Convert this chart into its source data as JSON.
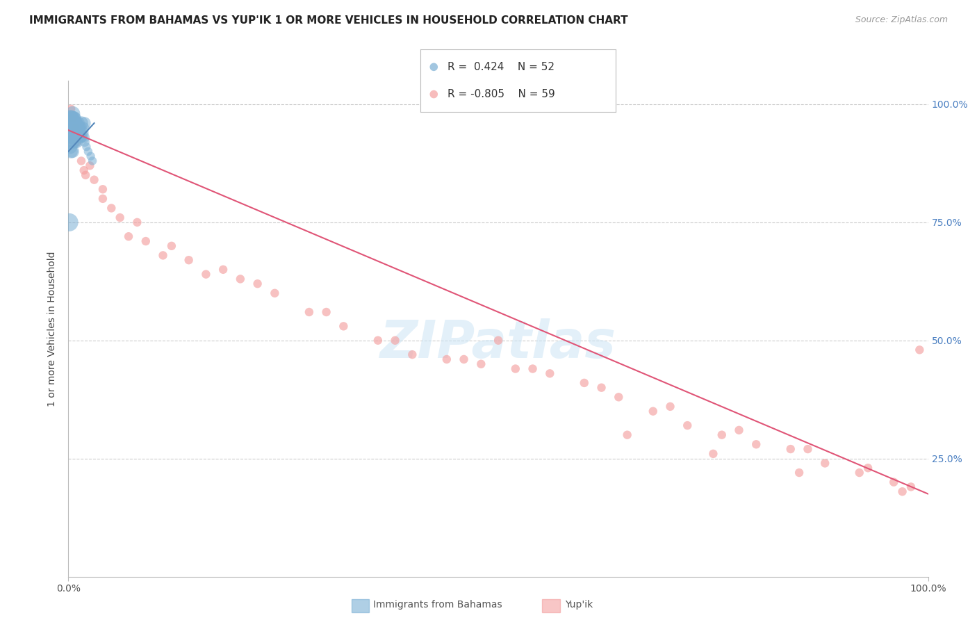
{
  "title": "IMMIGRANTS FROM BAHAMAS VS YUP'IK 1 OR MORE VEHICLES IN HOUSEHOLD CORRELATION CHART",
  "source": "Source: ZipAtlas.com",
  "ylabel": "1 or more Vehicles in Household",
  "background_color": "#ffffff",
  "watermark": "ZIPatlas",
  "blue_color": "#7bafd4",
  "pink_color": "#f4a0a0",
  "blue_line_color": "#5588bb",
  "pink_line_color": "#e05577",
  "grid_color": "#cccccc",
  "ytick_values": [
    0.0,
    0.25,
    0.5,
    0.75,
    1.0
  ],
  "xlim": [
    0.0,
    1.0
  ],
  "ylim": [
    0.0,
    1.05
  ],
  "bahamas_x": [
    0.001,
    0.002,
    0.002,
    0.003,
    0.003,
    0.003,
    0.004,
    0.004,
    0.005,
    0.005,
    0.005,
    0.006,
    0.006,
    0.007,
    0.007,
    0.008,
    0.008,
    0.009,
    0.009,
    0.01,
    0.01,
    0.011,
    0.012,
    0.013,
    0.014,
    0.015,
    0.016,
    0.017,
    0.018,
    0.019,
    0.002,
    0.003,
    0.004,
    0.005,
    0.006,
    0.007,
    0.008,
    0.009,
    0.01,
    0.011,
    0.012,
    0.013,
    0.014,
    0.015,
    0.016,
    0.017,
    0.019,
    0.021,
    0.023,
    0.026,
    0.001,
    0.028
  ],
  "bahamas_y": [
    0.95,
    0.93,
    0.91,
    0.96,
    0.94,
    0.9,
    0.95,
    0.92,
    0.96,
    0.93,
    0.9,
    0.95,
    0.92,
    0.96,
    0.93,
    0.95,
    0.92,
    0.96,
    0.93,
    0.95,
    0.92,
    0.96,
    0.94,
    0.95,
    0.93,
    0.96,
    0.94,
    0.95,
    0.93,
    0.96,
    0.97,
    0.97,
    0.97,
    0.98,
    0.97,
    0.97,
    0.96,
    0.96,
    0.96,
    0.95,
    0.95,
    0.95,
    0.94,
    0.94,
    0.93,
    0.93,
    0.92,
    0.91,
    0.9,
    0.89,
    0.75,
    0.88
  ],
  "bahamas_size": [
    200,
    180,
    220,
    160,
    240,
    200,
    180,
    220,
    160,
    200,
    180,
    220,
    160,
    200,
    180,
    220,
    160,
    200,
    180,
    220,
    160,
    200,
    180,
    220,
    160,
    200,
    180,
    160,
    140,
    160,
    300,
    280,
    260,
    240,
    220,
    200,
    180,
    160,
    140,
    160,
    140,
    140,
    120,
    120,
    100,
    100,
    100,
    80,
    80,
    80,
    350,
    80
  ],
  "yupik_x": [
    0.003,
    0.005,
    0.008,
    0.01,
    0.015,
    0.018,
    0.02,
    0.025,
    0.03,
    0.04,
    0.05,
    0.06,
    0.07,
    0.09,
    0.11,
    0.14,
    0.16,
    0.2,
    0.24,
    0.28,
    0.32,
    0.36,
    0.4,
    0.44,
    0.48,
    0.52,
    0.56,
    0.6,
    0.64,
    0.68,
    0.72,
    0.76,
    0.8,
    0.84,
    0.88,
    0.92,
    0.96,
    0.98,
    0.99,
    0.04,
    0.08,
    0.12,
    0.18,
    0.22,
    0.3,
    0.38,
    0.46,
    0.54,
    0.62,
    0.7,
    0.78,
    0.86,
    0.93,
    0.97,
    0.5,
    0.65,
    0.75,
    0.85
  ],
  "yupik_y": [
    0.99,
    0.97,
    0.95,
    0.92,
    0.88,
    0.86,
    0.85,
    0.87,
    0.84,
    0.8,
    0.78,
    0.76,
    0.72,
    0.71,
    0.68,
    0.67,
    0.64,
    0.63,
    0.6,
    0.56,
    0.53,
    0.5,
    0.47,
    0.46,
    0.45,
    0.44,
    0.43,
    0.41,
    0.38,
    0.35,
    0.32,
    0.3,
    0.28,
    0.27,
    0.24,
    0.22,
    0.2,
    0.19,
    0.48,
    0.82,
    0.75,
    0.7,
    0.65,
    0.62,
    0.56,
    0.5,
    0.46,
    0.44,
    0.4,
    0.36,
    0.31,
    0.27,
    0.23,
    0.18,
    0.5,
    0.3,
    0.26,
    0.22
  ],
  "yupik_size": [
    80,
    80,
    80,
    80,
    80,
    80,
    80,
    80,
    80,
    80,
    80,
    80,
    80,
    80,
    80,
    80,
    80,
    80,
    80,
    80,
    80,
    80,
    80,
    80,
    80,
    80,
    80,
    80,
    80,
    80,
    80,
    80,
    80,
    80,
    80,
    80,
    80,
    80,
    80,
    80,
    80,
    80,
    80,
    80,
    80,
    80,
    80,
    80,
    80,
    80,
    80,
    80,
    80,
    80,
    80,
    80,
    80,
    80
  ],
  "blue_line_x": [
    0.0,
    0.03
  ],
  "blue_line_y_start": 0.9,
  "blue_line_y_end": 0.96,
  "pink_line_x": [
    0.0,
    1.0
  ],
  "pink_line_y_start": 0.945,
  "pink_line_y_end": 0.175
}
